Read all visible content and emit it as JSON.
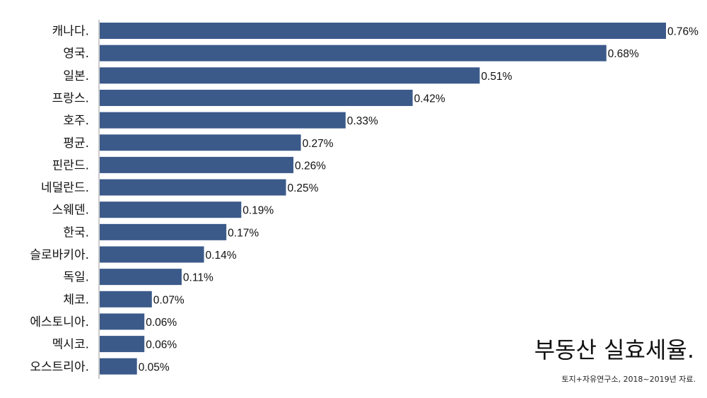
{
  "chart_data": {
    "type": "bar",
    "orientation": "horizontal",
    "title": "부동산 실효세율.",
    "source": "토지+자유연구소, 2018~2019년 자료.",
    "categories": [
      "캐나다.",
      "영국.",
      "일본.",
      "프랑스.",
      "호주.",
      "평균.",
      "핀란드.",
      "네덜란드.",
      "스웨덴.",
      "한국.",
      "슬로바키아.",
      "독일.",
      "체코.",
      "에스토니아.",
      "멕시코.",
      "오스트리아."
    ],
    "values": [
      0.76,
      0.68,
      0.51,
      0.42,
      0.33,
      0.27,
      0.26,
      0.25,
      0.19,
      0.17,
      0.14,
      0.11,
      0.07,
      0.06,
      0.06,
      0.05
    ],
    "value_labels": [
      "0.76%",
      "0.68%",
      "0.51%",
      "0.42%",
      "0.33%",
      "0.27%",
      "0.26%",
      "0.25%",
      "0.19%",
      "0.17%",
      "0.14%",
      "0.11%",
      "0.07%",
      "0.06%",
      "0.06%",
      "0.05%"
    ],
    "unit": "%",
    "xlim": [
      0,
      0.76
    ],
    "grid": false,
    "colors": {
      "bar": "#3b5a8a",
      "axis": "#999999"
    }
  }
}
